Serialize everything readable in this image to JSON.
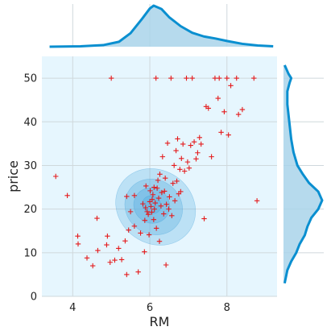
{
  "chart_data": {
    "type": "scatter",
    "subtype": "jointplot-kde",
    "xlabel": "RM",
    "ylabel": "price",
    "xlim": [
      3.2,
      9.3
    ],
    "ylim": [
      0,
      55
    ],
    "x_ticks": [
      4,
      6,
      8
    ],
    "y_ticks": [
      0,
      10,
      20,
      30,
      40,
      50
    ],
    "grid": true,
    "marker": "+",
    "colors": {
      "marker": "#e41a1c",
      "kde_line": "#0a8fd0",
      "kde_fill": "#a9d3ea",
      "plot_bg": "#e6f6fe",
      "page_bg": "#ffffff",
      "grid": "#cfd8dc"
    },
    "marginal_x": {
      "x": [
        3.4,
        4.2,
        4.8,
        5.2,
        5.5,
        5.8,
        6.0,
        6.1,
        6.3,
        6.5,
        6.8,
        7.1,
        7.4,
        7.7,
        8.0,
        8.4,
        8.8,
        9.2
      ],
      "density": [
        0.0,
        0.01,
        0.04,
        0.12,
        0.33,
        0.68,
        0.93,
        1.0,
        0.92,
        0.72,
        0.5,
        0.34,
        0.25,
        0.2,
        0.14,
        0.07,
        0.03,
        0.01
      ]
    },
    "marginal_y": {
      "y": [
        3,
        6,
        8,
        10,
        12,
        14,
        16,
        18,
        20,
        22,
        24,
        26,
        28,
        30,
        33,
        36,
        40,
        44,
        47,
        49,
        50,
        51,
        53
      ],
      "density": [
        0.03,
        0.1,
        0.2,
        0.33,
        0.42,
        0.55,
        0.62,
        0.72,
        0.9,
        1.0,
        0.9,
        0.66,
        0.5,
        0.36,
        0.26,
        0.2,
        0.15,
        0.1,
        0.1,
        0.16,
        0.2,
        0.13,
        0.03
      ]
    },
    "kde_contours": [
      {
        "level": 0.1,
        "cx": 6.15,
        "cy": 20.5,
        "rx": 0.95,
        "ry": 9.5,
        "angle": -55
      },
      {
        "level": 0.3,
        "cx": 6.1,
        "cy": 20.5,
        "rx": 0.7,
        "ry": 6.8,
        "angle": -55
      },
      {
        "level": 0.6,
        "cx": 6.05,
        "cy": 20.8,
        "rx": 0.45,
        "ry": 4.2,
        "angle": -55
      },
      {
        "level": 0.9,
        "cx": 6.05,
        "cy": 21.0,
        "rx": 0.22,
        "ry": 2.2,
        "angle": -55
      }
    ],
    "points": [
      [
        3.56,
        27.5
      ],
      [
        3.86,
        23.1
      ],
      [
        4.13,
        13.8
      ],
      [
        4.14,
        12.0
      ],
      [
        4.37,
        8.8
      ],
      [
        4.52,
        7.0
      ],
      [
        4.63,
        17.9
      ],
      [
        4.65,
        10.5
      ],
      [
        4.88,
        11.8
      ],
      [
        4.9,
        13.8
      ],
      [
        4.97,
        7.8
      ],
      [
        5.0,
        50.0
      ],
      [
        5.09,
        8.3
      ],
      [
        5.19,
        11.0
      ],
      [
        5.27,
        8.4
      ],
      [
        5.36,
        12.7
      ],
      [
        5.4,
        5.0
      ],
      [
        5.4,
        22.9
      ],
      [
        5.45,
        15.2
      ],
      [
        5.5,
        19.4
      ],
      [
        5.6,
        16.1
      ],
      [
        5.6,
        23.1
      ],
      [
        5.7,
        5.6
      ],
      [
        5.76,
        14.5
      ],
      [
        5.82,
        21.2
      ],
      [
        5.86,
        10.2
      ],
      [
        5.87,
        17.4
      ],
      [
        5.89,
        20.3
      ],
      [
        5.9,
        25.3
      ],
      [
        5.93,
        19.4
      ],
      [
        5.96,
        18.8
      ],
      [
        5.98,
        14.1
      ],
      [
        6.0,
        21.7
      ],
      [
        6.01,
        24.2
      ],
      [
        6.03,
        20.6
      ],
      [
        6.05,
        19.3
      ],
      [
        6.06,
        22.2
      ],
      [
        6.08,
        23.3
      ],
      [
        6.1,
        17.6
      ],
      [
        6.11,
        25.0
      ],
      [
        6.12,
        20.0
      ],
      [
        6.14,
        21.4
      ],
      [
        6.16,
        50.0
      ],
      [
        6.17,
        15.6
      ],
      [
        6.19,
        24.8
      ],
      [
        6.21,
        26.6
      ],
      [
        6.23,
        22.5
      ],
      [
        6.25,
        12.6
      ],
      [
        6.26,
        28.0
      ],
      [
        6.29,
        20.7
      ],
      [
        6.31,
        23.8
      ],
      [
        6.33,
        32.0
      ],
      [
        6.36,
        18.9
      ],
      [
        6.38,
        24.1
      ],
      [
        6.4,
        27.1
      ],
      [
        6.42,
        7.2
      ],
      [
        6.43,
        21.1
      ],
      [
        6.46,
        35.1
      ],
      [
        6.49,
        20.0
      ],
      [
        6.51,
        22.8
      ],
      [
        6.55,
        50.0
      ],
      [
        6.57,
        18.5
      ],
      [
        6.6,
        25.9
      ],
      [
        6.63,
        30.0
      ],
      [
        6.65,
        21.9
      ],
      [
        6.68,
        33.4
      ],
      [
        6.7,
        26.4
      ],
      [
        6.72,
        36.1
      ],
      [
        6.75,
        23.5
      ],
      [
        6.78,
        29.1
      ],
      [
        6.8,
        24.0
      ],
      [
        6.82,
        31.6
      ],
      [
        6.86,
        34.9
      ],
      [
        6.9,
        28.7
      ],
      [
        6.95,
        50.0
      ],
      [
        6.98,
        30.8
      ],
      [
        7.02,
        29.4
      ],
      [
        7.06,
        34.6
      ],
      [
        7.1,
        50.0
      ],
      [
        7.15,
        35.4
      ],
      [
        7.2,
        31.5
      ],
      [
        7.24,
        32.9
      ],
      [
        7.29,
        36.4
      ],
      [
        7.33,
        34.9
      ],
      [
        7.41,
        17.8
      ],
      [
        7.46,
        43.5
      ],
      [
        7.52,
        43.1
      ],
      [
        7.6,
        32.0
      ],
      [
        7.69,
        50.0
      ],
      [
        7.77,
        45.4
      ],
      [
        7.8,
        50.0
      ],
      [
        7.85,
        37.6
      ],
      [
        7.93,
        42.3
      ],
      [
        8.0,
        50.0
      ],
      [
        8.04,
        37.0
      ],
      [
        8.1,
        48.3
      ],
      [
        8.25,
        50.0
      ],
      [
        8.3,
        41.7
      ],
      [
        8.4,
        42.8
      ],
      [
        8.7,
        50.0
      ],
      [
        8.78,
        21.9
      ]
    ]
  }
}
